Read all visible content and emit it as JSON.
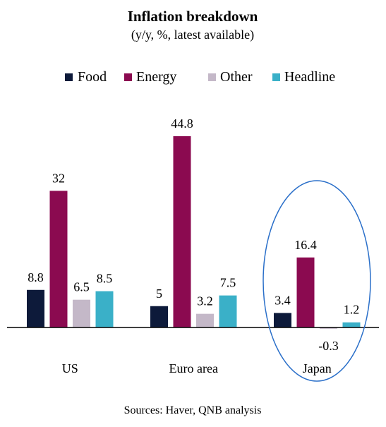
{
  "chart_data": {
    "type": "bar",
    "title": "Inflation breakdown",
    "subtitle": "(y/y, %, latest available)",
    "categories": [
      "US",
      "Euro area",
      "Japan"
    ],
    "series": [
      {
        "name": "Food",
        "color": "#0d1a3a",
        "values": [
          8.8,
          5,
          3.4
        ],
        "labels": [
          "8.8",
          "5",
          "3.4"
        ]
      },
      {
        "name": "Energy",
        "color": "#8b0a50",
        "values": [
          32,
          44.8,
          16.4
        ],
        "labels": [
          "32",
          "44.8",
          "16.4"
        ]
      },
      {
        "name": "Other",
        "color": "#c4b8c8",
        "values": [
          6.5,
          3.2,
          -0.3
        ],
        "labels": [
          "6.5",
          "3.2",
          "-0.3"
        ]
      },
      {
        "name": "Headline",
        "color": "#3ab0c8",
        "values": [
          8.5,
          7.5,
          1.2
        ],
        "labels": [
          "8.5",
          "7.5",
          "1.2"
        ]
      }
    ],
    "ylim": [
      -1,
      48
    ],
    "grid": false,
    "legend": "top",
    "highlight": {
      "category": "Japan",
      "shape": "ellipse",
      "color": "#2a6fc9"
    },
    "source": "Sources: Haver, QNB analysis"
  }
}
